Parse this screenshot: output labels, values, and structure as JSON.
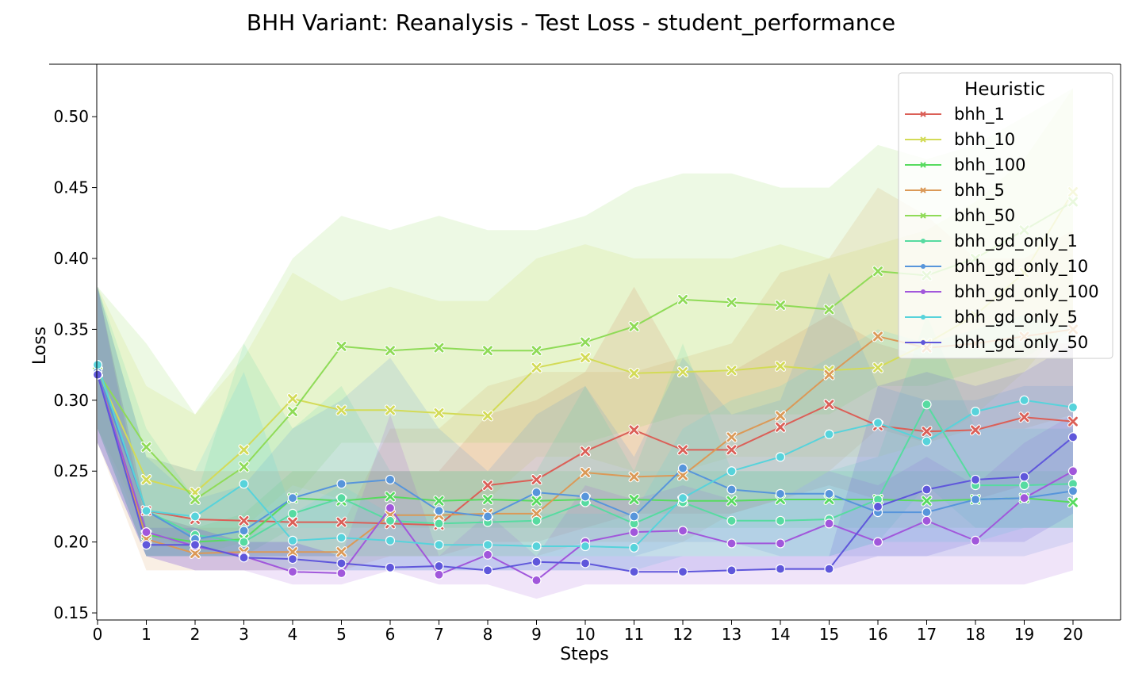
{
  "chart_data": {
    "type": "line",
    "title": "BHH Variant: Reanalysis - Test Loss - student_performance",
    "xlabel": "Steps",
    "ylabel": "Loss",
    "xlim": [
      0,
      20
    ],
    "ylim": [
      0.145,
      0.537
    ],
    "x": [
      0,
      1,
      2,
      3,
      4,
      5,
      6,
      7,
      8,
      9,
      10,
      11,
      12,
      13,
      14,
      15,
      16,
      17,
      18,
      19,
      20
    ],
    "x_ticks": [
      0,
      1,
      2,
      3,
      4,
      5,
      6,
      7,
      8,
      9,
      10,
      11,
      12,
      13,
      14,
      15,
      16,
      17,
      18,
      19,
      20
    ],
    "y_ticks": [
      0.15,
      0.2,
      0.25,
      0.3,
      0.35,
      0.4,
      0.45,
      0.5
    ],
    "y_tick_labels": [
      "0.15",
      "0.20",
      "0.25",
      "0.30",
      "0.35",
      "0.40",
      "0.45",
      "0.50"
    ],
    "grid": false,
    "legend": {
      "title": "Heuristic",
      "placement": "top-right"
    },
    "series": [
      {
        "name": "bhh_1",
        "color": "#db5f57",
        "marker": "x",
        "values": [
          0.32,
          0.222,
          0.216,
          0.215,
          0.214,
          0.214,
          0.213,
          0.212,
          0.24,
          0.244,
          0.264,
          0.279,
          0.265,
          0.265,
          0.281,
          0.297,
          0.282,
          0.278,
          0.279,
          0.288,
          0.285
        ],
        "lower": [
          0.28,
          0.19,
          0.19,
          0.19,
          0.19,
          0.19,
          0.19,
          0.19,
          0.2,
          0.2,
          0.21,
          0.22,
          0.22,
          0.22,
          0.23,
          0.24,
          0.23,
          0.23,
          0.23,
          0.24,
          0.24
        ],
        "upper": [
          0.38,
          0.26,
          0.25,
          0.25,
          0.25,
          0.25,
          0.25,
          0.25,
          0.29,
          0.3,
          0.32,
          0.38,
          0.32,
          0.32,
          0.34,
          0.36,
          0.34,
          0.33,
          0.33,
          0.34,
          0.34
        ]
      },
      {
        "name": "bhh_10",
        "color": "#d3db57",
        "marker": "x",
        "values": [
          0.32,
          0.244,
          0.235,
          0.265,
          0.301,
          0.293,
          0.293,
          0.291,
          0.289,
          0.323,
          0.33,
          0.319,
          0.32,
          0.321,
          0.324,
          0.321,
          0.323,
          0.34,
          0.36,
          0.39,
          0.447
        ],
        "lower": [
          0.28,
          0.2,
          0.2,
          0.21,
          0.24,
          0.23,
          0.23,
          0.23,
          0.23,
          0.26,
          0.26,
          0.25,
          0.25,
          0.26,
          0.26,
          0.26,
          0.26,
          0.27,
          0.29,
          0.32,
          0.36
        ],
        "upper": [
          0.38,
          0.31,
          0.29,
          0.33,
          0.39,
          0.37,
          0.38,
          0.37,
          0.37,
          0.4,
          0.41,
          0.4,
          0.4,
          0.4,
          0.41,
          0.4,
          0.41,
          0.42,
          0.44,
          0.47,
          0.52
        ]
      },
      {
        "name": "bhh_100",
        "color": "#57db5f",
        "marker": "x",
        "values": [
          0.32,
          0.205,
          0.2,
          0.202,
          0.231,
          0.229,
          0.232,
          0.229,
          0.23,
          0.229,
          0.23,
          0.23,
          0.229,
          0.229,
          0.23,
          0.23,
          0.23,
          0.229,
          0.23,
          0.231,
          0.228
        ],
        "lower": [
          0.28,
          0.19,
          0.19,
          0.19,
          0.21,
          0.21,
          0.21,
          0.21,
          0.21,
          0.21,
          0.21,
          0.21,
          0.21,
          0.21,
          0.21,
          0.21,
          0.21,
          0.21,
          0.21,
          0.21,
          0.21
        ],
        "upper": [
          0.38,
          0.22,
          0.21,
          0.22,
          0.25,
          0.25,
          0.25,
          0.25,
          0.25,
          0.25,
          0.25,
          0.25,
          0.25,
          0.25,
          0.25,
          0.25,
          0.25,
          0.25,
          0.25,
          0.25,
          0.25
        ]
      },
      {
        "name": "bhh_5",
        "color": "#db9957",
        "marker": "x",
        "values": [
          0.32,
          0.202,
          0.192,
          0.193,
          0.193,
          0.193,
          0.219,
          0.219,
          0.22,
          0.22,
          0.249,
          0.246,
          0.247,
          0.274,
          0.289,
          0.318,
          0.345,
          0.337,
          0.34,
          0.345,
          0.35
        ],
        "lower": [
          0.27,
          0.18,
          0.18,
          0.18,
          0.18,
          0.18,
          0.19,
          0.19,
          0.19,
          0.19,
          0.2,
          0.2,
          0.2,
          0.22,
          0.23,
          0.25,
          0.28,
          0.27,
          0.28,
          0.28,
          0.29
        ],
        "upper": [
          0.38,
          0.22,
          0.21,
          0.21,
          0.21,
          0.21,
          0.28,
          0.28,
          0.31,
          0.32,
          0.32,
          0.32,
          0.33,
          0.34,
          0.39,
          0.4,
          0.45,
          0.43,
          0.4,
          0.4,
          0.42
        ]
      },
      {
        "name": "bhh_50",
        "color": "#8fdb57",
        "marker": "x",
        "values": [
          0.32,
          0.267,
          0.23,
          0.253,
          0.292,
          0.338,
          0.335,
          0.337,
          0.335,
          0.335,
          0.341,
          0.352,
          0.371,
          0.369,
          0.367,
          0.364,
          0.391,
          0.388,
          0.4,
          0.42,
          0.44
        ],
        "lower": [
          0.28,
          0.21,
          0.19,
          0.2,
          0.23,
          0.27,
          0.27,
          0.27,
          0.27,
          0.27,
          0.27,
          0.28,
          0.29,
          0.29,
          0.29,
          0.29,
          0.31,
          0.31,
          0.32,
          0.33,
          0.35
        ],
        "upper": [
          0.38,
          0.34,
          0.29,
          0.34,
          0.4,
          0.43,
          0.42,
          0.43,
          0.42,
          0.42,
          0.43,
          0.45,
          0.46,
          0.46,
          0.45,
          0.45,
          0.48,
          0.47,
          0.48,
          0.5,
          0.52
        ]
      },
      {
        "name": "bhh_gd_only_1",
        "color": "#57dba1",
        "marker": "o",
        "values": [
          0.325,
          0.222,
          0.205,
          0.2,
          0.22,
          0.231,
          0.215,
          0.213,
          0.214,
          0.215,
          0.228,
          0.213,
          0.228,
          0.215,
          0.215,
          0.216,
          0.23,
          0.297,
          0.24,
          0.24,
          0.241
        ],
        "lower": [
          0.28,
          0.19,
          0.19,
          0.19,
          0.19,
          0.19,
          0.19,
          0.19,
          0.19,
          0.19,
          0.19,
          0.19,
          0.19,
          0.19,
          0.19,
          0.19,
          0.2,
          0.24,
          0.21,
          0.21,
          0.21
        ],
        "upper": [
          0.38,
          0.28,
          0.23,
          0.34,
          0.28,
          0.31,
          0.25,
          0.25,
          0.25,
          0.25,
          0.31,
          0.25,
          0.34,
          0.25,
          0.25,
          0.25,
          0.26,
          0.36,
          0.28,
          0.28,
          0.28
        ]
      },
      {
        "name": "bhh_gd_only_10",
        "color": "#5795db",
        "marker": "o",
        "values": [
          0.32,
          0.222,
          0.202,
          0.208,
          0.231,
          0.241,
          0.244,
          0.222,
          0.218,
          0.235,
          0.232,
          0.218,
          0.252,
          0.237,
          0.234,
          0.234,
          0.221,
          0.221,
          0.23,
          0.231,
          0.236
        ],
        "lower": [
          0.27,
          0.19,
          0.19,
          0.19,
          0.19,
          0.19,
          0.19,
          0.19,
          0.19,
          0.19,
          0.19,
          0.19,
          0.2,
          0.2,
          0.19,
          0.19,
          0.19,
          0.19,
          0.19,
          0.19,
          0.2
        ],
        "upper": [
          0.38,
          0.26,
          0.23,
          0.24,
          0.28,
          0.3,
          0.33,
          0.28,
          0.25,
          0.29,
          0.31,
          0.26,
          0.33,
          0.29,
          0.3,
          0.39,
          0.31,
          0.3,
          0.3,
          0.31,
          0.31
        ]
      },
      {
        "name": "bhh_gd_only_100",
        "color": "#a157db",
        "marker": "o",
        "values": [
          0.318,
          0.207,
          0.197,
          0.19,
          0.179,
          0.178,
          0.224,
          0.177,
          0.191,
          0.173,
          0.2,
          0.207,
          0.208,
          0.199,
          0.199,
          0.213,
          0.2,
          0.215,
          0.201,
          0.231,
          0.25
        ],
        "lower": [
          0.27,
          0.19,
          0.18,
          0.18,
          0.17,
          0.17,
          0.18,
          0.17,
          0.17,
          0.16,
          0.17,
          0.17,
          0.17,
          0.17,
          0.17,
          0.17,
          0.17,
          0.17,
          0.17,
          0.17,
          0.18
        ],
        "upper": [
          0.38,
          0.22,
          0.21,
          0.2,
          0.2,
          0.19,
          0.29,
          0.19,
          0.22,
          0.19,
          0.24,
          0.23,
          0.24,
          0.23,
          0.23,
          0.25,
          0.24,
          0.26,
          0.24,
          0.27,
          0.29
        ]
      },
      {
        "name": "bhh_gd_only_5",
        "color": "#57d3db",
        "marker": "o",
        "values": [
          0.325,
          0.222,
          0.218,
          0.241,
          0.201,
          0.203,
          0.201,
          0.198,
          0.198,
          0.197,
          0.197,
          0.196,
          0.231,
          0.25,
          0.26,
          0.276,
          0.284,
          0.271,
          0.292,
          0.3,
          0.295
        ],
        "lower": [
          0.28,
          0.19,
          0.19,
          0.19,
          0.18,
          0.18,
          0.18,
          0.18,
          0.18,
          0.18,
          0.18,
          0.18,
          0.19,
          0.19,
          0.19,
          0.19,
          0.2,
          0.2,
          0.2,
          0.21,
          0.21
        ],
        "upper": [
          0.38,
          0.26,
          0.25,
          0.32,
          0.22,
          0.24,
          0.22,
          0.22,
          0.22,
          0.22,
          0.22,
          0.22,
          0.28,
          0.3,
          0.31,
          0.33,
          0.35,
          0.34,
          0.35,
          0.36,
          0.35
        ]
      },
      {
        "name": "bhh_gd_only_50",
        "color": "#5f57db",
        "marker": "o",
        "values": [
          0.318,
          0.198,
          0.198,
          0.189,
          0.188,
          0.185,
          0.182,
          0.183,
          0.18,
          0.186,
          0.185,
          0.179,
          0.179,
          0.18,
          0.181,
          0.181,
          0.225,
          0.237,
          0.244,
          0.246,
          0.274
        ],
        "lower": [
          0.27,
          0.19,
          0.18,
          0.18,
          0.18,
          0.18,
          0.18,
          0.18,
          0.18,
          0.18,
          0.18,
          0.18,
          0.18,
          0.18,
          0.18,
          0.18,
          0.19,
          0.19,
          0.2,
          0.2,
          0.22
        ],
        "upper": [
          0.38,
          0.21,
          0.21,
          0.2,
          0.2,
          0.19,
          0.19,
          0.19,
          0.19,
          0.19,
          0.19,
          0.19,
          0.19,
          0.19,
          0.19,
          0.19,
          0.31,
          0.32,
          0.31,
          0.32,
          0.34
        ]
      }
    ]
  }
}
